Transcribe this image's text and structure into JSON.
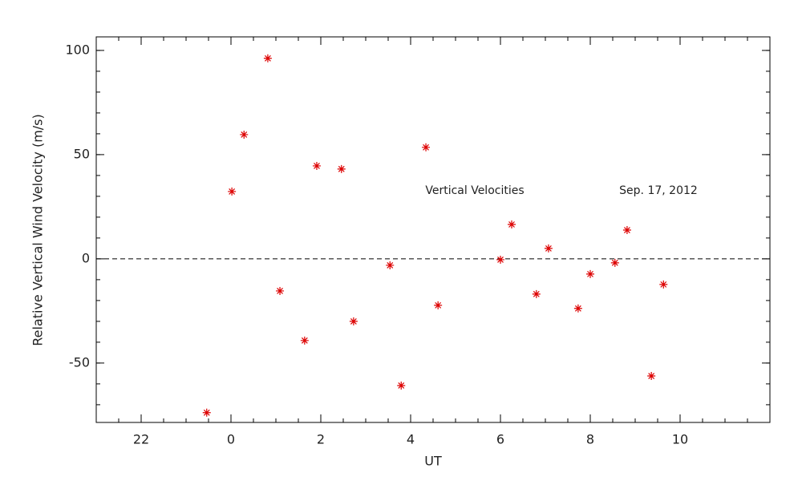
{
  "chart_data": {
    "type": "scatter",
    "xlabel": "UT",
    "ylabel": "Relative Vertical Wind Velocity (m/s)",
    "annotations": [
      "Vertical Velocities",
      "Sep. 17, 2012"
    ],
    "x": [
      -0.54,
      0.02,
      0.29,
      0.82,
      1.09,
      1.64,
      1.91,
      2.46,
      2.73,
      3.54,
      3.79,
      4.34,
      4.61,
      6.0,
      6.25,
      6.8,
      7.07,
      7.73,
      8.0,
      8.55,
      8.82,
      9.36,
      9.63
    ],
    "values": [
      -73.8,
      32.3,
      59.6,
      96.2,
      -15.4,
      -39.2,
      44.6,
      43.1,
      -30,
      -3.1,
      -60.8,
      53.5,
      -22.3,
      -0.4,
      16.5,
      -16.9,
      5,
      -23.8,
      -7.3,
      -1.9,
      13.8,
      -56.2,
      -12.3
    ],
    "color": "#dd0000",
    "marker": "asterisk",
    "xlim": [
      -3,
      12
    ],
    "xticks": [
      {
        "value": -2,
        "label": "22"
      },
      0,
      2,
      4,
      6,
      8,
      10
    ],
    "xminor": 4,
    "ylim": [
      -78.5,
      106.5
    ],
    "yticks": [
      -50,
      0,
      50,
      100
    ],
    "yminor": 5,
    "hline": 0
  }
}
